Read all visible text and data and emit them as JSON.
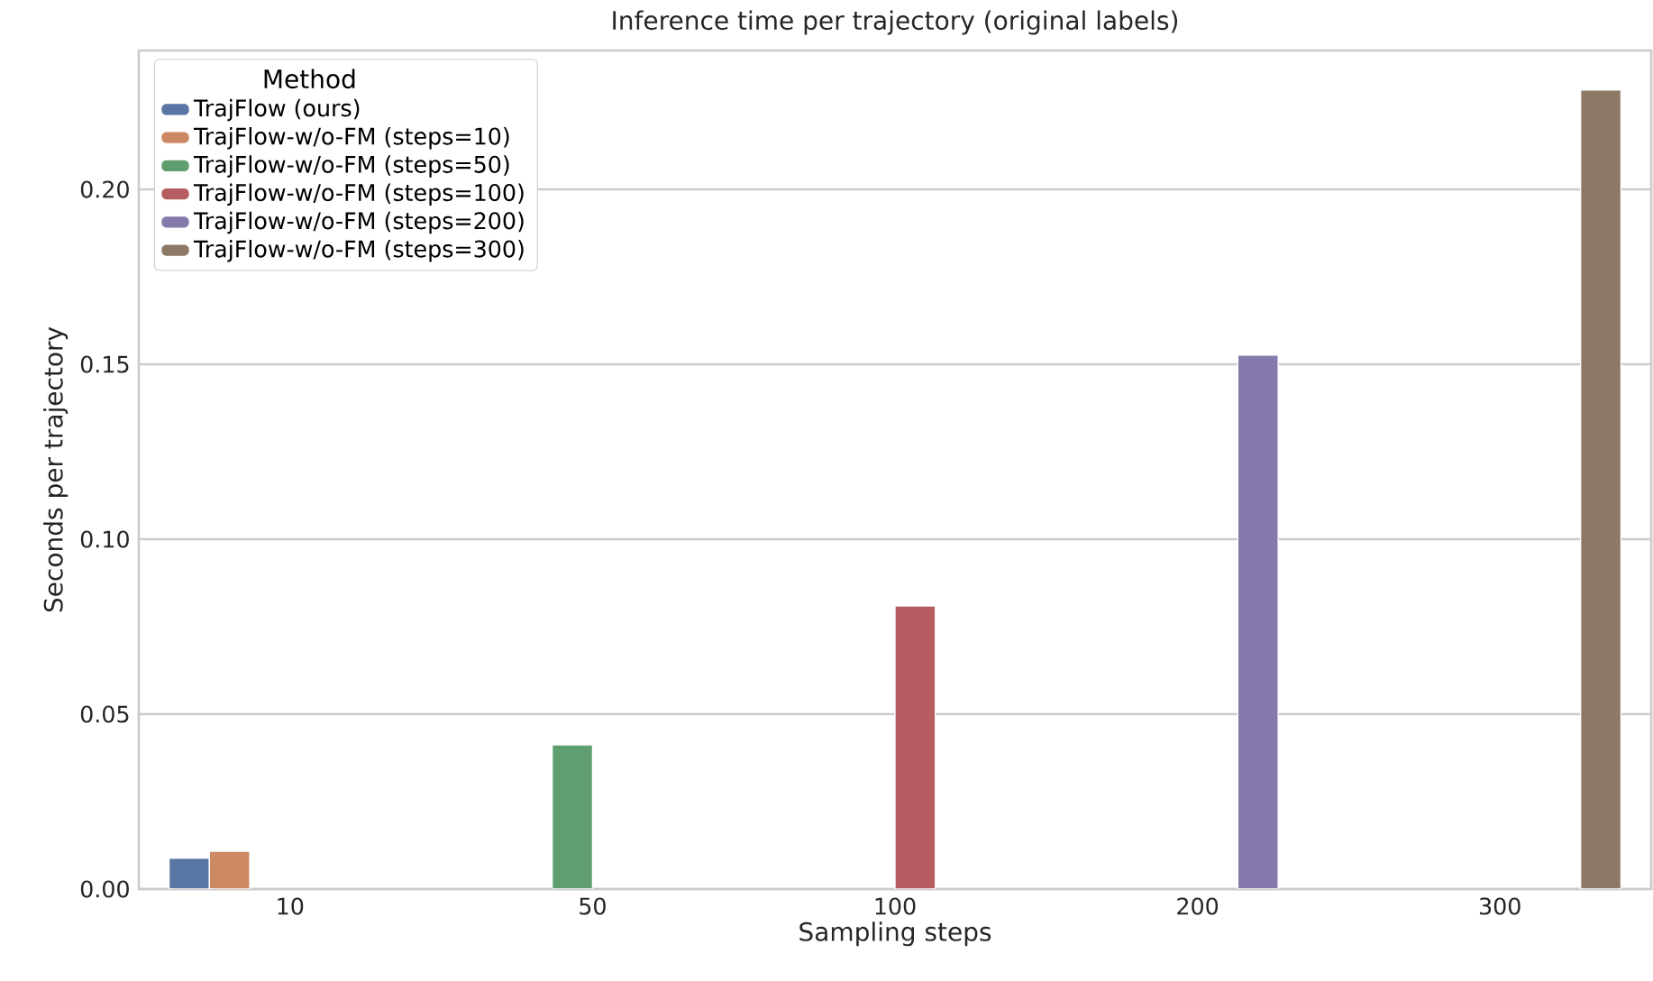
{
  "chart_data": {
    "type": "bar",
    "title": "Inference time per trajectory (original labels)",
    "xlabel": "Sampling steps",
    "ylabel": "Seconds per trajectory",
    "legend_title": "Method",
    "categories": [
      "10",
      "50",
      "100",
      "200",
      "300"
    ],
    "series": [
      {
        "name": "TrajFlow (ours)",
        "color": "#5875a4",
        "values": [
          0.0088,
          null,
          null,
          null,
          null
        ]
      },
      {
        "name": "TrajFlow-w/o-FM (steps=10)",
        "color": "#cc8963",
        "values": [
          0.0108,
          null,
          null,
          null,
          null
        ]
      },
      {
        "name": "TrajFlow-w/o-FM (steps=50)",
        "color": "#5f9e6e",
        "values": [
          null,
          0.0412,
          null,
          null,
          null
        ]
      },
      {
        "name": "TrajFlow-w/o-FM (steps=100)",
        "color": "#b55d60",
        "values": [
          null,
          null,
          0.0809,
          null,
          null
        ]
      },
      {
        "name": "TrajFlow-w/o-FM (steps=200)",
        "color": "#857aab",
        "values": [
          null,
          null,
          null,
          0.1526,
          null
        ]
      },
      {
        "name": "TrajFlow-w/o-FM (steps=300)",
        "color": "#8d7866",
        "values": [
          null,
          null,
          null,
          null,
          0.2284
        ]
      }
    ],
    "ylim": [
      0,
      0.2397
    ],
    "yticks": [
      {
        "value": 0,
        "label": "0.00"
      },
      {
        "value": 0.05,
        "label": "0.05"
      },
      {
        "value": 0.1,
        "label": "0.10"
      },
      {
        "value": 0.15,
        "label": "0.15"
      },
      {
        "value": 0.2,
        "label": "0.20"
      }
    ],
    "grid": "y",
    "legend": "top left"
  }
}
